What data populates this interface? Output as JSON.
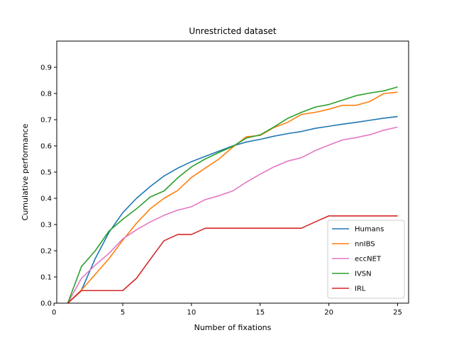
{
  "chart_data": {
    "type": "line",
    "title": "Unrestricted dataset",
    "xlabel": "Number of fixations",
    "ylabel": "Cumulative performance",
    "xlim": [
      0.2,
      25.8
    ],
    "ylim": [
      0,
      1.0
    ],
    "xticks": [
      0,
      5,
      10,
      15,
      20,
      25
    ],
    "yticks": [
      0.0,
      0.1,
      0.2,
      0.3,
      0.4,
      0.5,
      0.6,
      0.7,
      0.8,
      0.9
    ],
    "xtick_labels": [
      "0",
      "5",
      "10",
      "15",
      "20",
      "25"
    ],
    "ytick_labels": [
      "0.0",
      "0.1",
      "0.2",
      "0.3",
      "0.4",
      "0.5",
      "0.6",
      "0.7",
      "0.8",
      "0.9"
    ],
    "legend_position": "bottom-right",
    "grid": false,
    "x": [
      1,
      2,
      3,
      4,
      5,
      6,
      7,
      8,
      9,
      10,
      11,
      12,
      13,
      14,
      15,
      16,
      17,
      18,
      19,
      20,
      21,
      22,
      23,
      24,
      25
    ],
    "series": [
      {
        "name": "Humans",
        "color": "#1f77b4",
        "values": [
          0.0,
          0.05,
          0.17,
          0.27,
          0.345,
          0.4,
          0.445,
          0.485,
          0.515,
          0.54,
          0.56,
          0.58,
          0.6,
          0.615,
          0.625,
          0.637,
          0.647,
          0.655,
          0.667,
          0.675,
          0.683,
          0.69,
          0.698,
          0.706,
          0.712
        ]
      },
      {
        "name": "nnIBS",
        "color": "#ff7f0e",
        "values": [
          0.0,
          0.05,
          0.11,
          0.17,
          0.24,
          0.305,
          0.36,
          0.4,
          0.43,
          0.48,
          0.515,
          0.55,
          0.595,
          0.635,
          0.64,
          0.67,
          0.69,
          0.72,
          0.728,
          0.74,
          0.755,
          0.755,
          0.77,
          0.8,
          0.805
        ]
      },
      {
        "name": "eccNET",
        "color": "#e377c2",
        "values": [
          0.0,
          0.095,
          0.145,
          0.19,
          0.245,
          0.28,
          0.31,
          0.335,
          0.355,
          0.368,
          0.395,
          0.41,
          0.428,
          0.462,
          0.492,
          0.52,
          0.542,
          0.555,
          0.582,
          0.603,
          0.623,
          0.632,
          0.643,
          0.66,
          0.672
        ]
      },
      {
        "name": "IVSN",
        "color": "#2ca02c",
        "values": [
          0.0,
          0.14,
          0.2,
          0.275,
          0.32,
          0.36,
          0.405,
          0.428,
          0.478,
          0.52,
          0.55,
          0.575,
          0.598,
          0.63,
          0.642,
          0.672,
          0.705,
          0.728,
          0.748,
          0.758,
          0.775,
          0.792,
          0.802,
          0.81,
          0.825
        ]
      },
      {
        "name": "IRL",
        "color": "#d62728",
        "values": [
          0.0,
          0.048,
          0.048,
          0.048,
          0.048,
          0.095,
          0.167,
          0.238,
          0.262,
          0.262,
          0.286,
          0.286,
          0.286,
          0.286,
          0.286,
          0.286,
          0.286,
          0.286,
          0.31,
          0.333,
          0.333,
          0.333,
          0.333,
          0.333,
          0.333
        ]
      }
    ]
  }
}
